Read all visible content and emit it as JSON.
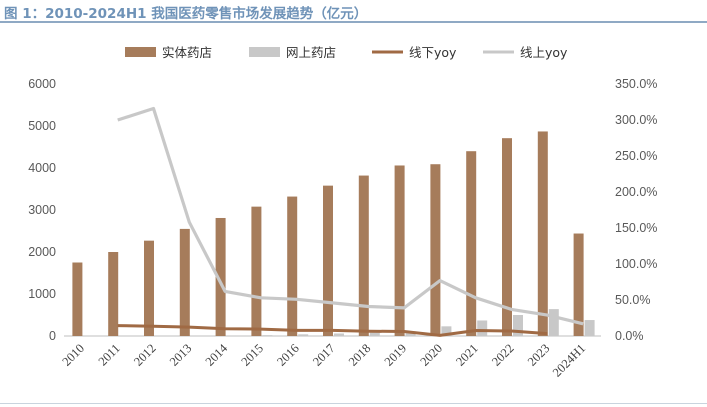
{
  "title": "图 1：2010-2024H1 我国医药零售市场发展趋势（亿元）",
  "chart_data": {
    "type": "bar",
    "categories": [
      "2010",
      "2011",
      "2012",
      "2013",
      "2014",
      "2015",
      "2016",
      "2017",
      "2018",
      "2019",
      "2020",
      "2021",
      "2022",
      "2023",
      "2024H1"
    ],
    "series": [
      {
        "name": "实体药店",
        "kind": "bar",
        "axis": "left",
        "color": "#a67c5b",
        "values": [
          1750,
          2000,
          2270,
          2550,
          2810,
          3080,
          3320,
          3580,
          3820,
          4060,
          4090,
          4400,
          4710,
          4870,
          2440
        ]
      },
      {
        "name": "网上药店",
        "kind": "bar",
        "axis": "left",
        "color": "#c8c8c8",
        "values": [
          0,
          0,
          0,
          0,
          0,
          20,
          40,
          60,
          80,
          110,
          230,
          370,
          500,
          640,
          380
        ]
      },
      {
        "name": "线下yoy",
        "kind": "line",
        "axis": "right",
        "color": "#a06a44",
        "values": [
          null,
          14.5,
          13.5,
          12.3,
          10.2,
          9.6,
          7.8,
          7.8,
          6.7,
          6.3,
          0.8,
          7.6,
          7.0,
          3.4,
          null
        ]
      },
      {
        "name": "线上yoy",
        "kind": "line",
        "axis": "right",
        "color": "#c8c8c8",
        "values": [
          null,
          300,
          316,
          158,
          62,
          53,
          51,
          46,
          41,
          39,
          77,
          53,
          37,
          29,
          17
        ]
      }
    ],
    "y_left": {
      "min": 0,
      "max": 6000,
      "ticks": [
        "0",
        "1000",
        "2000",
        "3000",
        "4000",
        "5000",
        "6000"
      ]
    },
    "y_right": {
      "min": 0,
      "max": 350,
      "ticks": [
        "0.0%",
        "50.0%",
        "100.0%",
        "150.0%",
        "200.0%",
        "250.0%",
        "300.0%",
        "350.0%"
      ]
    },
    "grid": false,
    "legend_position": "top"
  }
}
